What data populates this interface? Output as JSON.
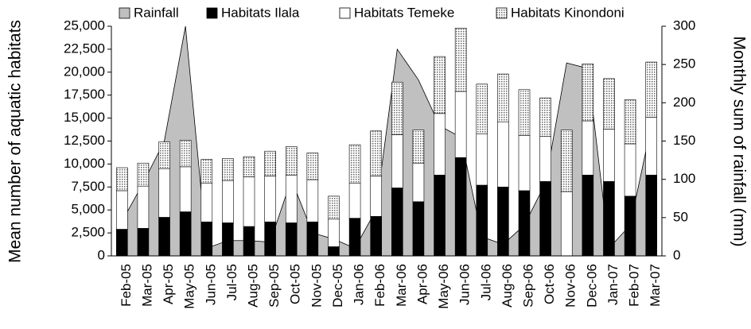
{
  "chart_data": {
    "type": "stacked_bar_area",
    "y_label": "Mean number of aquatic habitats",
    "y2_label": "Monthly sum of rainfall (mm)",
    "categories": [
      "Feb-05",
      "Mar-05",
      "Apr-05",
      "May-05",
      "Jun-05",
      "Jul-05",
      "Aug-05",
      "Sep-05",
      "Oct-05",
      "Nov-05",
      "Dec-05",
      "Jan-06",
      "Feb-06",
      "Mar-06",
      "Apr-06",
      "May-06",
      "Jun-06",
      "Jul-06",
      "Aug-06",
      "Sep-06",
      "Oct-06",
      "Nov-06",
      "Dec-06",
      "Jan-07",
      "Feb-07",
      "Mar-07"
    ],
    "series": [
      {
        "name": "Rainfall",
        "color": "#c0c0c0",
        "axis": "y2",
        "kind": "area",
        "values": [
          45,
          95,
          150,
          300,
          10,
          20,
          20,
          18,
          100,
          30,
          22,
          10,
          60,
          270,
          230,
          170,
          155,
          25,
          15,
          40,
          95,
          252,
          245,
          10,
          40,
          170
        ]
      },
      {
        "name": "Habitats Ilala",
        "color": "#000000",
        "kind": "bar",
        "values": [
          2900,
          3000,
          4200,
          4800,
          3700,
          3600,
          3200,
          3700,
          3600,
          3700,
          1000,
          4100,
          4300,
          7400,
          5900,
          8800,
          10700,
          7700,
          7500,
          7100,
          8100,
          0,
          8800,
          8100,
          6500,
          8800
        ]
      },
      {
        "name": "Habitats Temeke",
        "color": "#ffffff",
        "kind": "bar",
        "values": [
          4200,
          4600,
          5300,
          4900,
          4200,
          4600,
          5400,
          5000,
          5200,
          4600,
          3000,
          3800,
          4400,
          5800,
          4200,
          6700,
          7200,
          5600,
          7100,
          6000,
          4900,
          7000,
          5900,
          5700,
          5700,
          6300
        ]
      },
      {
        "name": "Habitats Kinondoni",
        "color": "#b0b0b0",
        "kind": "bar",
        "pattern": "dots",
        "values": [
          2500,
          2500,
          2900,
          2900,
          2600,
          2400,
          2200,
          2700,
          3100,
          2900,
          2500,
          4200,
          4900,
          5700,
          3600,
          6200,
          6900,
          5400,
          5200,
          5000,
          4200,
          6700,
          6200,
          5500,
          4800,
          6000
        ]
      }
    ],
    "ylim": [
      0,
      25000
    ],
    "yticks": [
      0,
      {
        "value": 2500,
        "label": "2,500"
      },
      {
        "value": 5000,
        "label": "5,000"
      },
      {
        "value": 7500,
        "label": "7,500"
      },
      {
        "value": 10000,
        "label": "10,000"
      },
      {
        "value": 12500,
        "label": "12,500"
      },
      {
        "value": 15000,
        "label": "15,000"
      },
      {
        "value": 17500,
        "label": "17,500"
      },
      {
        "value": 20000,
        "label": "20,000"
      },
      {
        "value": 22500,
        "label": "22,500"
      },
      {
        "value": 25000,
        "label": "25,000"
      }
    ],
    "y2lim": [
      0,
      300
    ],
    "y2ticks": [
      0,
      50,
      100,
      150,
      200,
      250,
      300
    ],
    "legend": "top"
  }
}
